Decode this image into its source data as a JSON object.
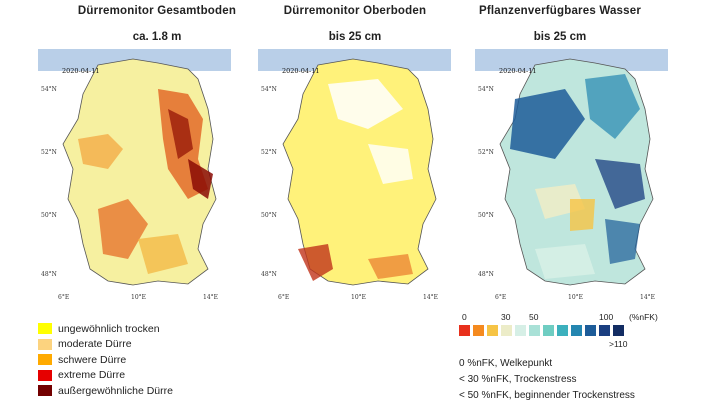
{
  "panels": [
    {
      "title": "Dürremonitor Gesamtboden",
      "subtitle": "ca. 1.8 m",
      "date": "2020-04-11"
    },
    {
      "title": "Dürremonitor Oberboden",
      "subtitle": "bis 25 cm",
      "date": "2020-04-11"
    },
    {
      "title": "Pflanzenverfügbares Wasser",
      "subtitle": "bis 25 cm",
      "date": "2020-04-11"
    }
  ],
  "axes": {
    "lat": [
      "54°N",
      "52°N",
      "50°N",
      "48°N"
    ],
    "lon": [
      "6°E",
      "10°E",
      "14°E"
    ]
  },
  "drought_legend": [
    {
      "label": "ungewöhnlich trocken",
      "color": "#ffff00"
    },
    {
      "label": "moderate Dürre",
      "color": "#fcd37f"
    },
    {
      "label": "schwere Dürre",
      "color": "#ffaa00"
    },
    {
      "label": "extreme Dürre",
      "color": "#e60000"
    },
    {
      "label": "außergewöhnliche Dürre",
      "color": "#730000"
    }
  ],
  "water_scale": {
    "ticks": [
      "0",
      "30",
      "50",
      "100",
      "(%nFK)"
    ],
    "max_label": ">110",
    "colors": [
      "#e8301c",
      "#f58a1f",
      "#f6c445",
      "#ececc8",
      "#d6efe6",
      "#a9e1d7",
      "#6fcdc2",
      "#3cb0bd",
      "#2486b0",
      "#1d5c99",
      "#1a3e80",
      "#132d63"
    ]
  },
  "notes": [
    "0 %nFK, Welkepunkt",
    "< 30 %nFK, Trockenstress",
    "< 50 %nFK, beginnender Trockenstress"
  ]
}
